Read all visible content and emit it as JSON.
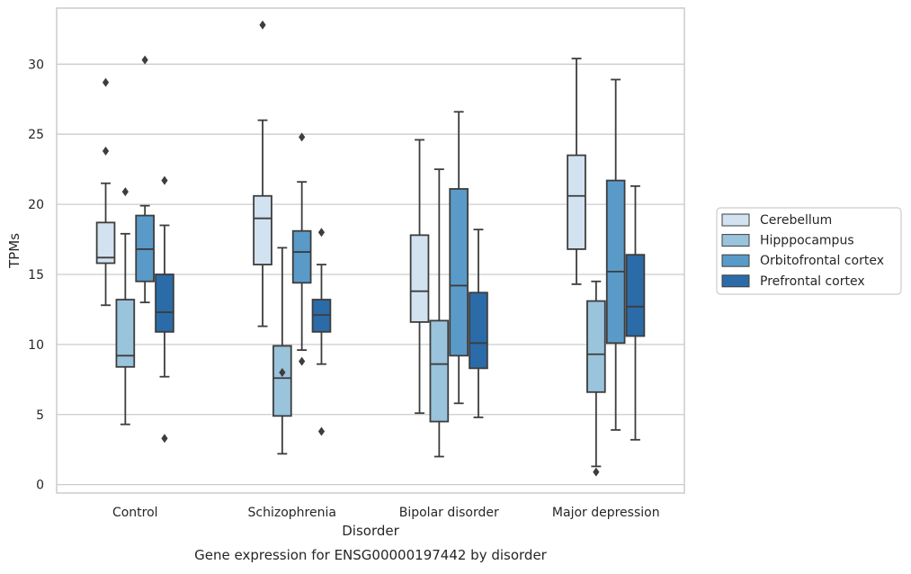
{
  "chart_data": {
    "type": "boxplot",
    "title": "",
    "caption": "Gene expression for ENSG00000197442 by disorder",
    "xlabel": "Disorder",
    "ylabel": "TPMs",
    "ylim": [
      -0.6,
      34.0
    ],
    "yticks": [
      0,
      5,
      10,
      15,
      20,
      25,
      30
    ],
    "grid": "horizontal",
    "legend_position": "center-right",
    "categories": [
      "Control",
      "Schizophrenia",
      "Bipolar disorder",
      "Major depression"
    ],
    "series": [
      {
        "name": "Cerebellum",
        "color": "#d2e2f1",
        "boxes": [
          {
            "whisker_low": 12.8,
            "q1": 15.8,
            "median": 16.2,
            "q3": 18.7,
            "whisker_high": 21.5,
            "outliers": [
              23.8,
              28.7
            ]
          },
          {
            "whisker_low": 11.3,
            "q1": 15.7,
            "median": 19.0,
            "q3": 20.6,
            "whisker_high": 26.0,
            "outliers": [
              32.8
            ]
          },
          {
            "whisker_low": 5.1,
            "q1": 11.6,
            "median": 13.8,
            "q3": 17.8,
            "whisker_high": 24.6,
            "outliers": []
          },
          {
            "whisker_low": 14.3,
            "q1": 16.8,
            "median": 20.6,
            "q3": 23.5,
            "whisker_high": 30.4,
            "outliers": []
          }
        ]
      },
      {
        "name": "Hipppocampus",
        "color": "#9ac3dc",
        "boxes": [
          {
            "whisker_low": 4.3,
            "q1": 8.4,
            "median": 9.2,
            "q3": 13.2,
            "whisker_high": 17.9,
            "outliers": [
              20.9
            ]
          },
          {
            "whisker_low": 2.2,
            "q1": 4.9,
            "median": 7.6,
            "q3": 9.9,
            "whisker_high": 16.9,
            "outliers": [
              8.0
            ]
          },
          {
            "whisker_low": 2.0,
            "q1": 4.5,
            "median": 8.6,
            "q3": 11.7,
            "whisker_high": 22.5,
            "outliers": []
          },
          {
            "whisker_low": 1.3,
            "q1": 6.6,
            "median": 9.3,
            "q3": 13.1,
            "whisker_high": 14.5,
            "outliers": [
              0.9
            ]
          }
        ]
      },
      {
        "name": "Orbitofrontal cortex",
        "color": "#5a9ac8",
        "boxes": [
          {
            "whisker_low": 13.0,
            "q1": 14.5,
            "median": 16.8,
            "q3": 19.2,
            "whisker_high": 19.9,
            "outliers": [
              30.3
            ]
          },
          {
            "whisker_low": 9.6,
            "q1": 14.4,
            "median": 16.6,
            "q3": 18.1,
            "whisker_high": 21.6,
            "outliers": [
              24.8,
              8.8
            ]
          },
          {
            "whisker_low": 5.8,
            "q1": 9.2,
            "median": 14.2,
            "q3": 21.1,
            "whisker_high": 26.6,
            "outliers": []
          },
          {
            "whisker_low": 3.9,
            "q1": 10.1,
            "median": 15.2,
            "q3": 21.7,
            "whisker_high": 28.9,
            "outliers": []
          }
        ]
      },
      {
        "name": "Prefrontal cortex",
        "color": "#2a6ba8",
        "boxes": [
          {
            "whisker_low": 7.7,
            "q1": 10.9,
            "median": 12.3,
            "q3": 15.0,
            "whisker_high": 18.5,
            "outliers": [
              21.7,
              3.3
            ]
          },
          {
            "whisker_low": 8.6,
            "q1": 10.9,
            "median": 12.1,
            "q3": 13.2,
            "whisker_high": 15.7,
            "outliers": [
              18.0,
              3.8
            ]
          },
          {
            "whisker_low": 4.8,
            "q1": 8.3,
            "median": 10.1,
            "q3": 13.7,
            "whisker_high": 18.2,
            "outliers": []
          },
          {
            "whisker_low": 3.2,
            "q1": 10.6,
            "median": 12.7,
            "q3": 16.4,
            "whisker_high": 21.3,
            "outliers": []
          }
        ]
      }
    ],
    "colors": {
      "grid": "#cccccc",
      "frame": "#cccccc",
      "box_edge": "#3d3d3d",
      "text": "#262626",
      "background": "#ffffff"
    }
  }
}
